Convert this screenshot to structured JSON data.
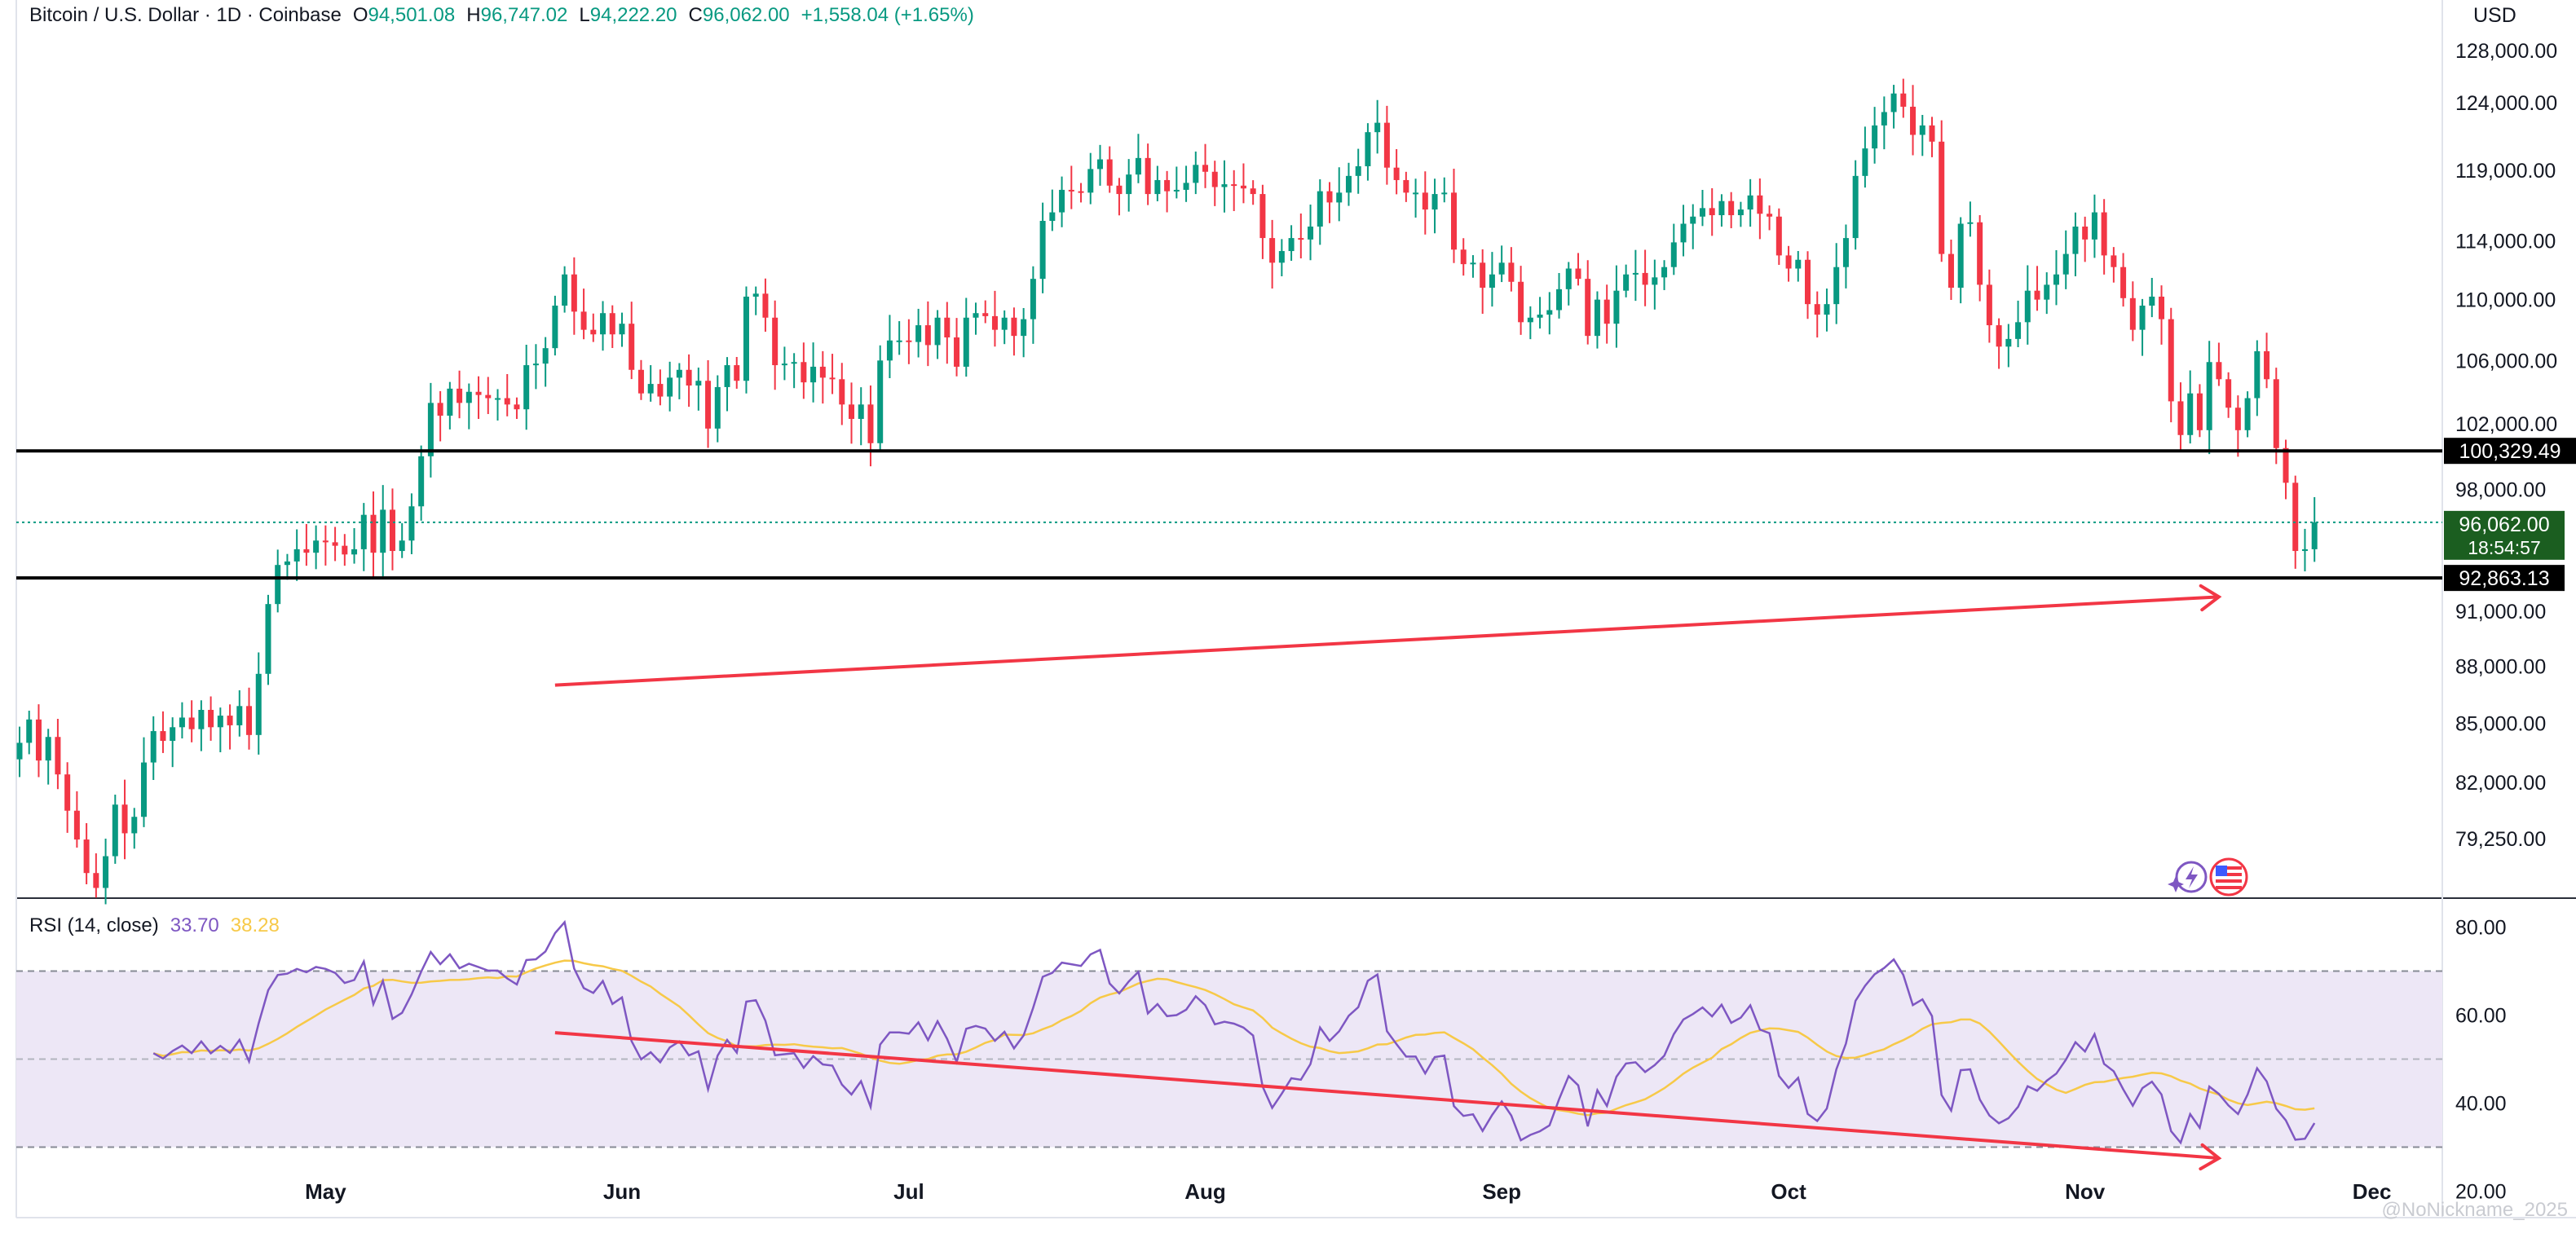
{
  "header": {
    "symbol": "Bitcoin / U.S. Dollar · 1D · Coinbase",
    "open_key": "O",
    "open": "94,501.08",
    "high_key": "H",
    "high": "96,747.02",
    "low_key": "L",
    "low": "94,222.20",
    "close_key": "C",
    "close": "96,062.00",
    "change": "+1,558.04 (+1.65%)"
  },
  "currency": "USD",
  "price_axis": {
    "labels": [
      "128,000.00",
      "124,000.00",
      "119,000.00",
      "114,000.00",
      "110,000.00",
      "106,000.00",
      "102,000.00",
      "98,000.00",
      "91,000.00",
      "88,000.00",
      "85,000.00",
      "82,000.00",
      "79,250.00"
    ]
  },
  "levels": {
    "resistance": "100,329.49",
    "support": "92,863.13",
    "last_price": "96,062.00",
    "countdown": "18:54:57"
  },
  "rsi": {
    "title": "RSI (14, close)",
    "value": "33.70",
    "ma_value": "38.28",
    "axis_labels": [
      "80.00",
      "60.00",
      "40.00",
      "20.00"
    ]
  },
  "time_axis": [
    "May",
    "Jun",
    "Jul",
    "Aug",
    "Sep",
    "Oct",
    "Nov",
    "Dec"
  ],
  "watermark": "@NoNickname_2025",
  "colors": {
    "up": "#089981",
    "down": "#f23645",
    "rsi_line": "#7e57c2",
    "rsi_ma": "#f7c948",
    "drawing": "#f23645",
    "level_line": "#000000",
    "rsi_band": "#ede7f6"
  },
  "icons": [
    "sparkle-lightning-icon",
    "us-flag-icon"
  ],
  "chart_data": {
    "type": "candlestick",
    "series_start": "2025-03-30",
    "interval": "1D",
    "y_scale": "log",
    "ylim": [
      76500,
      132000
    ],
    "closes": [
      84000,
      85200,
      83100,
      84300,
      82400,
      80600,
      79200,
      77600,
      76900,
      78400,
      80900,
      79500,
      80300,
      83000,
      84600,
      84100,
      84800,
      85300,
      84700,
      85700,
      84800,
      85400,
      84900,
      85900,
      84400,
      87600,
      91400,
      93600,
      93800,
      94500,
      94300,
      95000,
      94900,
      94700,
      94200,
      94500,
      96500,
      94300,
      96800,
      94400,
      95000,
      97000,
      100000,
      103300,
      102500,
      104200,
      103300,
      104000,
      103800,
      103600,
      103600,
      103200,
      102900,
      105700,
      105800,
      106800,
      109600,
      111700,
      109200,
      108000,
      107700,
      109100,
      107700,
      108400,
      105400,
      103900,
      104500,
      103700,
      104900,
      105400,
      104400,
      104700,
      101700,
      104300,
      105700,
      104700,
      110200,
      110400,
      108800,
      105700,
      105800,
      105900,
      104600,
      105600,
      104900,
      104800,
      103200,
      102300,
      103200,
      100800,
      106000,
      107300,
      107300,
      107200,
      108300,
      107000,
      108800,
      107500,
      105600,
      108800,
      109100,
      108900,
      108000,
      108800,
      107600,
      108700,
      111400,
      115400,
      116000,
      117600,
      117500,
      117400,
      119100,
      119800,
      117900,
      117300,
      118700,
      119900,
      117300,
      118300,
      117500,
      117600,
      118100,
      119400,
      118900,
      117800,
      118000,
      117900,
      117700,
      117300,
      114200,
      112500,
      113300,
      114200,
      114100,
      115000,
      117500,
      116700,
      117400,
      118600,
      119300,
      121800,
      122500,
      119200,
      118300,
      117400,
      117400,
      116200,
      117300,
      117400,
      113400,
      112400,
      112500,
      110800,
      111700,
      112500,
      111200,
      108500,
      108800,
      109000,
      109300,
      110700,
      112100,
      111400,
      107600,
      110000,
      108400,
      110600,
      111700,
      111800,
      111000,
      111500,
      112200,
      113900,
      115200,
      115700,
      116300,
      115800,
      116800,
      115800,
      116200,
      117200,
      115900,
      115700,
      113000,
      112100,
      112700,
      109700,
      109000,
      109700,
      112200,
      114200,
      118600,
      120600,
      122300,
      123300,
      124700,
      123700,
      121600,
      122300,
      121100,
      113100,
      110800,
      115200,
      115300,
      111000,
      108300,
      106900,
      107400,
      108500,
      110600,
      110000,
      111000,
      111700,
      113100,
      115000,
      114100,
      116000,
      113000,
      112200,
      110100,
      108000,
      109600,
      110200,
      108700,
      103400,
      101300,
      103900,
      101600,
      105900,
      104800,
      103000,
      101600,
      103600,
      106600,
      104800,
      100500,
      98400,
      94400,
      94500,
      96062
    ],
    "resistance": 100329.49,
    "support": 92863.13,
    "last_price": 96062.0,
    "rsi_ylim": [
      14,
      86
    ],
    "rsi_bands": [
      70,
      50,
      30
    ],
    "rsi_axis_ticks": [
      80,
      60,
      40,
      20
    ],
    "rsi_value": 33.7,
    "rsi_ma": 38.28,
    "trendlines": [
      {
        "pane": "price",
        "from": {
          "day": 56,
          "value": 87000
        },
        "to": {
          "day": 230,
          "value": 91800
        }
      },
      {
        "pane": "rsi",
        "from": {
          "day": 56,
          "value": 56
        },
        "to": {
          "day": 230,
          "value": 27.5
        }
      }
    ]
  }
}
